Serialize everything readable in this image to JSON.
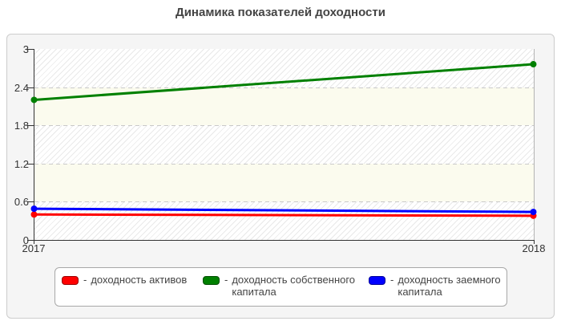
{
  "title": "Динамика показателей доходности",
  "legend": {
    "dash": "-",
    "items": [
      {
        "label": "доходность активов",
        "color": "#ff0000",
        "border": "#990000"
      },
      {
        "label": "доходность собственного капитала",
        "color": "#008000",
        "border": "#004d00"
      },
      {
        "label": "доходность заемного капитала",
        "color": "#0000ff",
        "border": "#000099"
      }
    ]
  },
  "chart_data": {
    "type": "line",
    "title": "Динамика показателей доходности",
    "categories": [
      "2017",
      "2018"
    ],
    "x": [
      2017,
      2018
    ],
    "series": [
      {
        "name": "доходность активов",
        "color": "#ff0000",
        "values": [
          0.4,
          0.38
        ]
      },
      {
        "name": "доходность собственного капитала",
        "color": "#008000",
        "values": [
          2.2,
          2.76
        ]
      },
      {
        "name": "доходность заемного капитала",
        "color": "#0000ff",
        "values": [
          0.49,
          0.44
        ]
      }
    ],
    "ylim": [
      0,
      3
    ],
    "yticks": [
      0,
      0.6,
      1.2,
      1.8,
      2.4,
      3
    ],
    "ytick_labels": [
      "0",
      "0.6",
      "1.2",
      "1.8",
      "2.4",
      "3"
    ],
    "grid": "horizontal dashed",
    "plot_bands": "alternating hatched and cream horizontal bands",
    "legend_position": "bottom"
  },
  "colors": {
    "panel_bg": "#f5f5f5",
    "panel_border": "#cccccc",
    "band_cream": "#fbfbee",
    "hatch_line": "#e9e9e9",
    "axis": "#333333",
    "grid": "#c9c9c9",
    "title_text": "#444444",
    "label_text": "#333333"
  }
}
